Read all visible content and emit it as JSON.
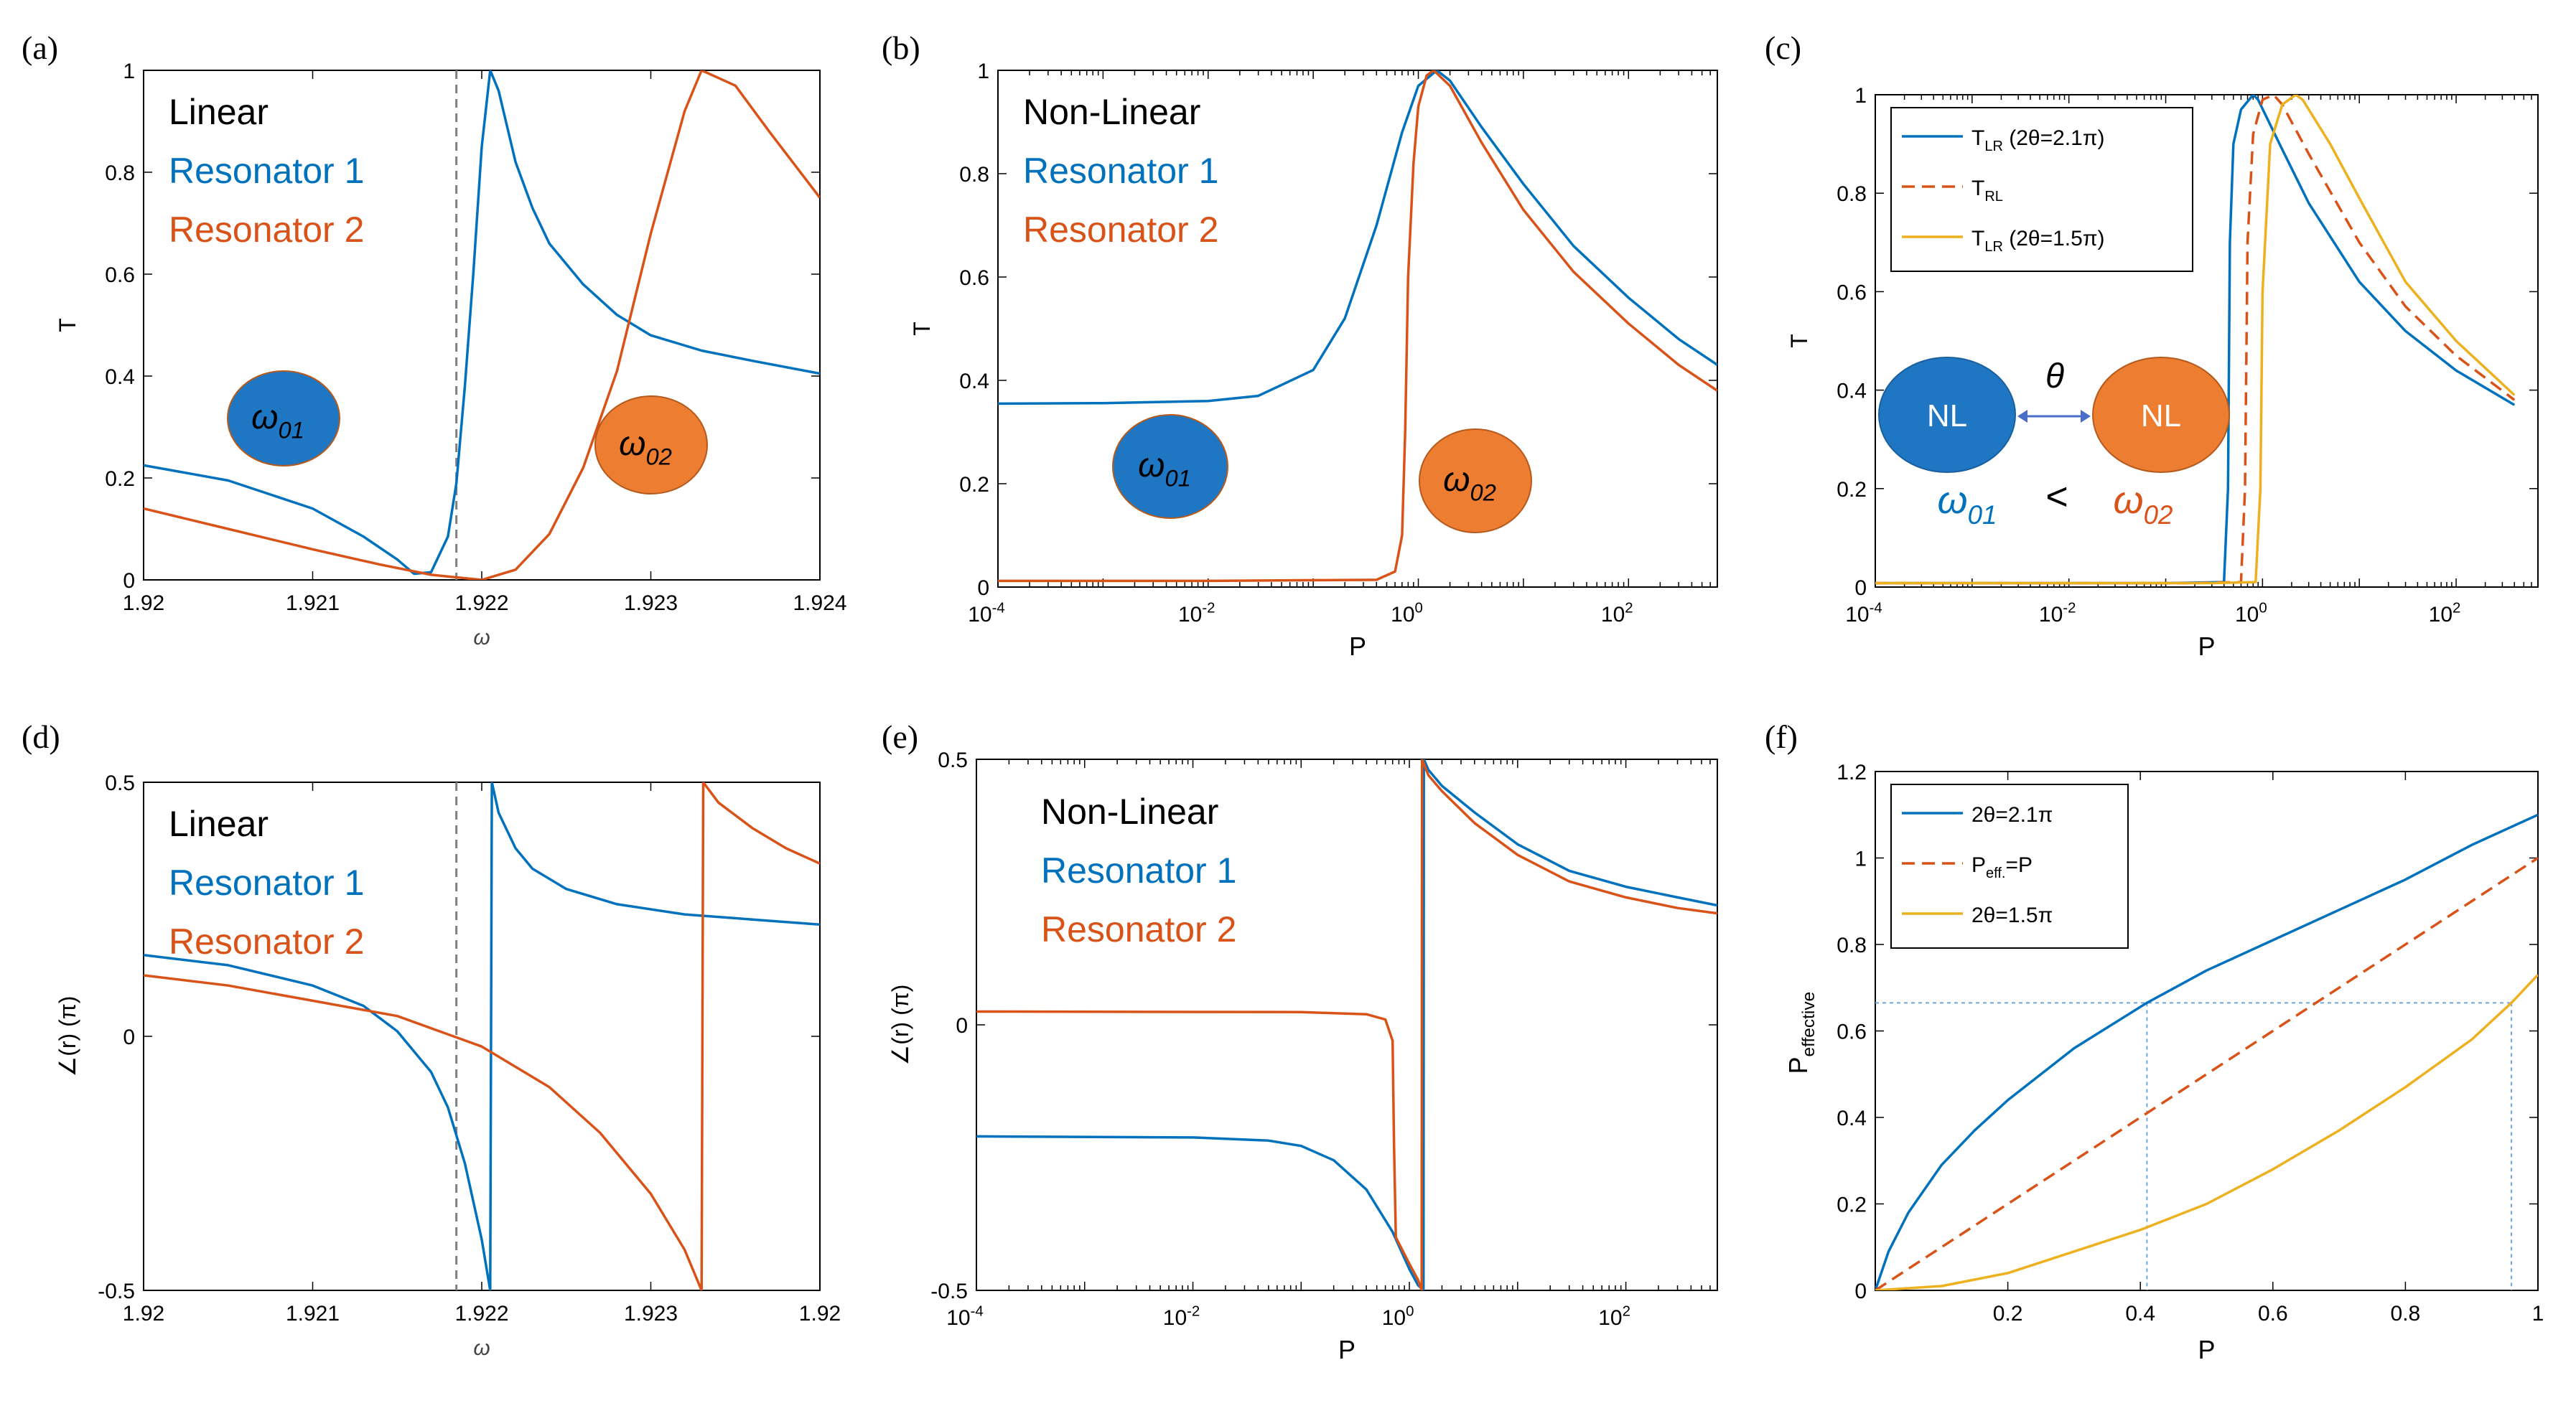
{
  "figure": {
    "colors": {
      "blue": "#0072BD",
      "orange": "#D95319",
      "yellow": "#EDB120",
      "circle_blue": "#1F77C4",
      "circle_orange": "#ED7D31",
      "dash": "#7f7f7f",
      "guide": "#6fa8dc"
    }
  },
  "chart_data": [
    {
      "panel": "(a)",
      "type": "line",
      "xlabel": "ω",
      "ylabel": "T",
      "xlim": [
        1.92,
        1.924
      ],
      "ylim": [
        0,
        1
      ],
      "xticks": [
        "1.92",
        "1.921",
        "1.922",
        "1.923",
        "1.924"
      ],
      "yticks": [
        "0",
        "0.2",
        "0.4",
        "0.6",
        "0.8",
        "1"
      ],
      "text_legend": [
        "Linear",
        "Resonator 1",
        "Resonator 2"
      ],
      "vline": 1.92185,
      "inset_labels": [
        "ω01",
        "ω02"
      ],
      "series": [
        {
          "name": "Resonator 1",
          "x": [
            1.92,
            1.9205,
            1.921,
            1.9213,
            1.9215,
            1.9216,
            1.9217,
            1.9218,
            1.92185,
            1.9219,
            1.92195,
            1.922,
            1.92205,
            1.9221,
            1.92215,
            1.9222,
            1.9223,
            1.9224,
            1.9226,
            1.9228,
            1.923,
            1.9233,
            1.9236,
            1.924
          ],
          "y": [
            0.225,
            0.195,
            0.14,
            0.085,
            0.04,
            0.012,
            0.015,
            0.085,
            0.19,
            0.38,
            0.6,
            0.85,
            1.0,
            0.96,
            0.89,
            0.82,
            0.73,
            0.66,
            0.58,
            0.52,
            0.48,
            0.45,
            0.43,
            0.405
          ]
        },
        {
          "name": "Resonator 2",
          "x": [
            1.92,
            1.9205,
            1.921,
            1.9214,
            1.9217,
            1.922,
            1.9222,
            1.9224,
            1.9226,
            1.9228,
            1.923,
            1.9232,
            1.9233,
            1.9235,
            1.9237,
            1.924
          ],
          "y": [
            0.14,
            0.1,
            0.06,
            0.03,
            0.01,
            0.0,
            0.02,
            0.09,
            0.22,
            0.41,
            0.68,
            0.92,
            1.0,
            0.97,
            0.88,
            0.75
          ]
        }
      ]
    },
    {
      "panel": "(b)",
      "type": "line",
      "xscale": "log",
      "xlabel": "P",
      "ylabel": "T",
      "xlim": [
        0.0001,
        700
      ],
      "ylim": [
        0,
        1
      ],
      "xticks": [
        "10-4",
        "10-2",
        "100",
        "102"
      ],
      "yticks": [
        "0",
        "0.2",
        "0.4",
        "0.6",
        "0.8",
        "1"
      ],
      "text_legend": [
        "Non-Linear",
        "Resonator 1",
        "Resonator 2"
      ],
      "inset_labels": [
        "ω01",
        "ω02"
      ],
      "series": [
        {
          "name": "Resonator 1",
          "x": [
            0.0001,
            0.001,
            0.01,
            0.03,
            0.1,
            0.2,
            0.4,
            0.7,
            1.0,
            1.5,
            2,
            4,
            10,
            30,
            100,
            300,
            700
          ],
          "y": [
            0.355,
            0.356,
            0.36,
            0.37,
            0.42,
            0.52,
            0.7,
            0.88,
            0.97,
            1.0,
            0.98,
            0.89,
            0.78,
            0.66,
            0.56,
            0.48,
            0.43
          ]
        },
        {
          "name": "Resonator 2",
          "x": [
            0.0001,
            0.01,
            0.4,
            0.6,
            0.7,
            0.75,
            0.8,
            0.9,
            1.0,
            1.2,
            1.4,
            2,
            4,
            10,
            30,
            100,
            300,
            700
          ],
          "y": [
            0.012,
            0.012,
            0.014,
            0.03,
            0.1,
            0.3,
            0.6,
            0.82,
            0.93,
            0.99,
            1.0,
            0.97,
            0.86,
            0.73,
            0.61,
            0.51,
            0.43,
            0.38
          ]
        }
      ]
    },
    {
      "panel": "(c)",
      "type": "line",
      "xscale": "log",
      "xlabel": "P",
      "ylabel": "T",
      "xlim": [
        0.0001,
        700
      ],
      "ylim": [
        0,
        1
      ],
      "xticks": [
        "10-4",
        "10-2",
        "100",
        "102"
      ],
      "yticks": [
        "0",
        "0.2",
        "0.4",
        "0.6",
        "0.8",
        "1"
      ],
      "legend": [
        "TLR (2θ=2.1π)",
        "TRL",
        "TLR (2θ=1.5π)"
      ],
      "diagram": {
        "node_label": "NL",
        "theta": "θ",
        "inequality": [
          "ω01",
          "<",
          "ω02"
        ]
      },
      "series": [
        {
          "name": "TLR (2θ=2.1π)",
          "x": [
            0.0001,
            0.1,
            0.4,
            0.44,
            0.46,
            0.5,
            0.6,
            0.8,
            0.9,
            1.5,
            3,
            10,
            30,
            100,
            400
          ],
          "y": [
            0.008,
            0.008,
            0.01,
            0.2,
            0.7,
            0.9,
            0.97,
            1.0,
            0.99,
            0.9,
            0.78,
            0.62,
            0.52,
            0.44,
            0.37
          ]
        },
        {
          "name": "TRL",
          "x": [
            0.0001,
            0.2,
            0.6,
            0.66,
            0.7,
            0.8,
            1.0,
            1.3,
            1.6,
            3,
            10,
            30,
            100,
            400
          ],
          "y": [
            0.008,
            0.008,
            0.01,
            0.2,
            0.7,
            0.92,
            0.99,
            1.0,
            0.98,
            0.88,
            0.7,
            0.57,
            0.47,
            0.38
          ]
        },
        {
          "name": "TLR (2θ=1.5π)",
          "x": [
            0.0001,
            0.3,
            0.85,
            0.95,
            1.0,
            1.2,
            1.6,
            2.2,
            2.6,
            5,
            10,
            30,
            100,
            400
          ],
          "y": [
            0.008,
            0.008,
            0.01,
            0.2,
            0.6,
            0.9,
            0.98,
            1.0,
            0.99,
            0.9,
            0.79,
            0.62,
            0.5,
            0.39
          ]
        }
      ]
    },
    {
      "panel": "(d)",
      "type": "line",
      "xlabel": "ω",
      "ylabel": "∠(r) (π)",
      "xlim": [
        1.92,
        1.924
      ],
      "ylim": [
        -0.5,
        0.5
      ],
      "xticks": [
        "1.92",
        "1.921",
        "1.922",
        "1.923",
        "1.92"
      ],
      "yticks": [
        "-0.5",
        "0",
        "0.5"
      ],
      "text_legend": [
        "Linear",
        "Resonator 1",
        "Resonator 2"
      ],
      "vline": 1.92185,
      "series": [
        {
          "name": "Resonator 1",
          "x": [
            1.92,
            1.9205,
            1.921,
            1.9213,
            1.9215,
            1.9217,
            1.9218,
            1.9219,
            1.922,
            1.92205,
            1.92206,
            1.9221,
            1.9222,
            1.9223,
            1.9225,
            1.9228,
            1.9232,
            1.9236,
            1.924
          ],
          "y": [
            0.16,
            0.14,
            0.1,
            0.06,
            0.01,
            -0.07,
            -0.14,
            -0.25,
            -0.4,
            -0.5,
            0.5,
            0.44,
            0.37,
            0.33,
            0.29,
            0.26,
            0.24,
            0.23,
            0.22
          ]
        },
        {
          "name": "Resonator 2",
          "x": [
            1.92,
            1.9205,
            1.921,
            1.9215,
            1.922,
            1.9224,
            1.9227,
            1.923,
            1.9232,
            1.9233,
            1.92331,
            1.9234,
            1.9236,
            1.9238,
            1.924
          ],
          "y": [
            0.12,
            0.1,
            0.07,
            0.04,
            -0.02,
            -0.1,
            -0.19,
            -0.31,
            -0.42,
            -0.5,
            0.5,
            0.46,
            0.41,
            0.37,
            0.34
          ]
        }
      ]
    },
    {
      "panel": "(e)",
      "type": "line",
      "xscale": "log",
      "xlabel": "P",
      "ylabel": "∠(r) (π)",
      "xlim": [
        0.0001,
        700
      ],
      "ylim": [
        -0.5,
        0.5
      ],
      "xticks": [
        "10-4",
        "10-2",
        "100",
        "102"
      ],
      "yticks": [
        "-0.5",
        "0",
        "0.5"
      ],
      "text_legend": [
        "Non-Linear",
        "Resonator 1",
        "Resonator 2"
      ],
      "series": [
        {
          "name": "Resonator 1",
          "x": [
            0.0001,
            0.01,
            0.05,
            0.1,
            0.2,
            0.4,
            0.7,
            1.0,
            1.2,
            1.35,
            1.36,
            1.5,
            2,
            4,
            10,
            30,
            100,
            300,
            700
          ],
          "y": [
            -0.21,
            -0.212,
            -0.218,
            -0.228,
            -0.255,
            -0.31,
            -0.39,
            -0.46,
            -0.49,
            -0.5,
            0.5,
            0.48,
            0.45,
            0.4,
            0.34,
            0.29,
            0.26,
            0.24,
            0.225
          ]
        },
        {
          "name": "Resonator 2",
          "x": [
            0.0001,
            0.1,
            0.4,
            0.6,
            0.7,
            0.72,
            0.75,
            1.0,
            1.2,
            1.3,
            1.31,
            1.5,
            2,
            4,
            10,
            30,
            100,
            300,
            700
          ],
          "y": [
            0.025,
            0.024,
            0.02,
            0.01,
            -0.03,
            -0.22,
            -0.4,
            -0.45,
            -0.48,
            -0.5,
            0.5,
            0.47,
            0.44,
            0.38,
            0.32,
            0.27,
            0.24,
            0.22,
            0.21
          ]
        }
      ]
    },
    {
      "panel": "(f)",
      "type": "line",
      "xlabel": "P",
      "ylabel": "Peffective",
      "xlim": [
        0,
        1
      ],
      "ylim": [
        0,
        1.2
      ],
      "xticks": [
        "0.2",
        "0.4",
        "0.6",
        "0.8",
        "1"
      ],
      "yticks": [
        "0",
        "0.2",
        "0.4",
        "0.6",
        "0.8",
        "1",
        "1.2"
      ],
      "legend": [
        "2θ=2.1π",
        "Peff.=P",
        "2θ=1.5π"
      ],
      "guides": {
        "y": 0.665,
        "x1": 0.41,
        "x2": 0.96
      },
      "series": [
        {
          "name": "2θ=2.1π",
          "x": [
            0,
            0.02,
            0.05,
            0.1,
            0.15,
            0.2,
            0.3,
            0.41,
            0.5,
            0.6,
            0.7,
            0.8,
            0.9,
            1.0
          ],
          "y": [
            0,
            0.09,
            0.18,
            0.29,
            0.37,
            0.44,
            0.56,
            0.665,
            0.74,
            0.81,
            0.88,
            0.95,
            1.03,
            1.1
          ]
        },
        {
          "name": "Peff.=P",
          "x": [
            0,
            1
          ],
          "y": [
            0,
            1
          ]
        },
        {
          "name": "2θ=1.5π",
          "x": [
            0,
            0.1,
            0.2,
            0.3,
            0.4,
            0.5,
            0.6,
            0.7,
            0.8,
            0.9,
            0.96,
            1.0
          ],
          "y": [
            0,
            0.01,
            0.04,
            0.09,
            0.14,
            0.2,
            0.28,
            0.37,
            0.47,
            0.58,
            0.665,
            0.73
          ]
        }
      ]
    }
  ]
}
